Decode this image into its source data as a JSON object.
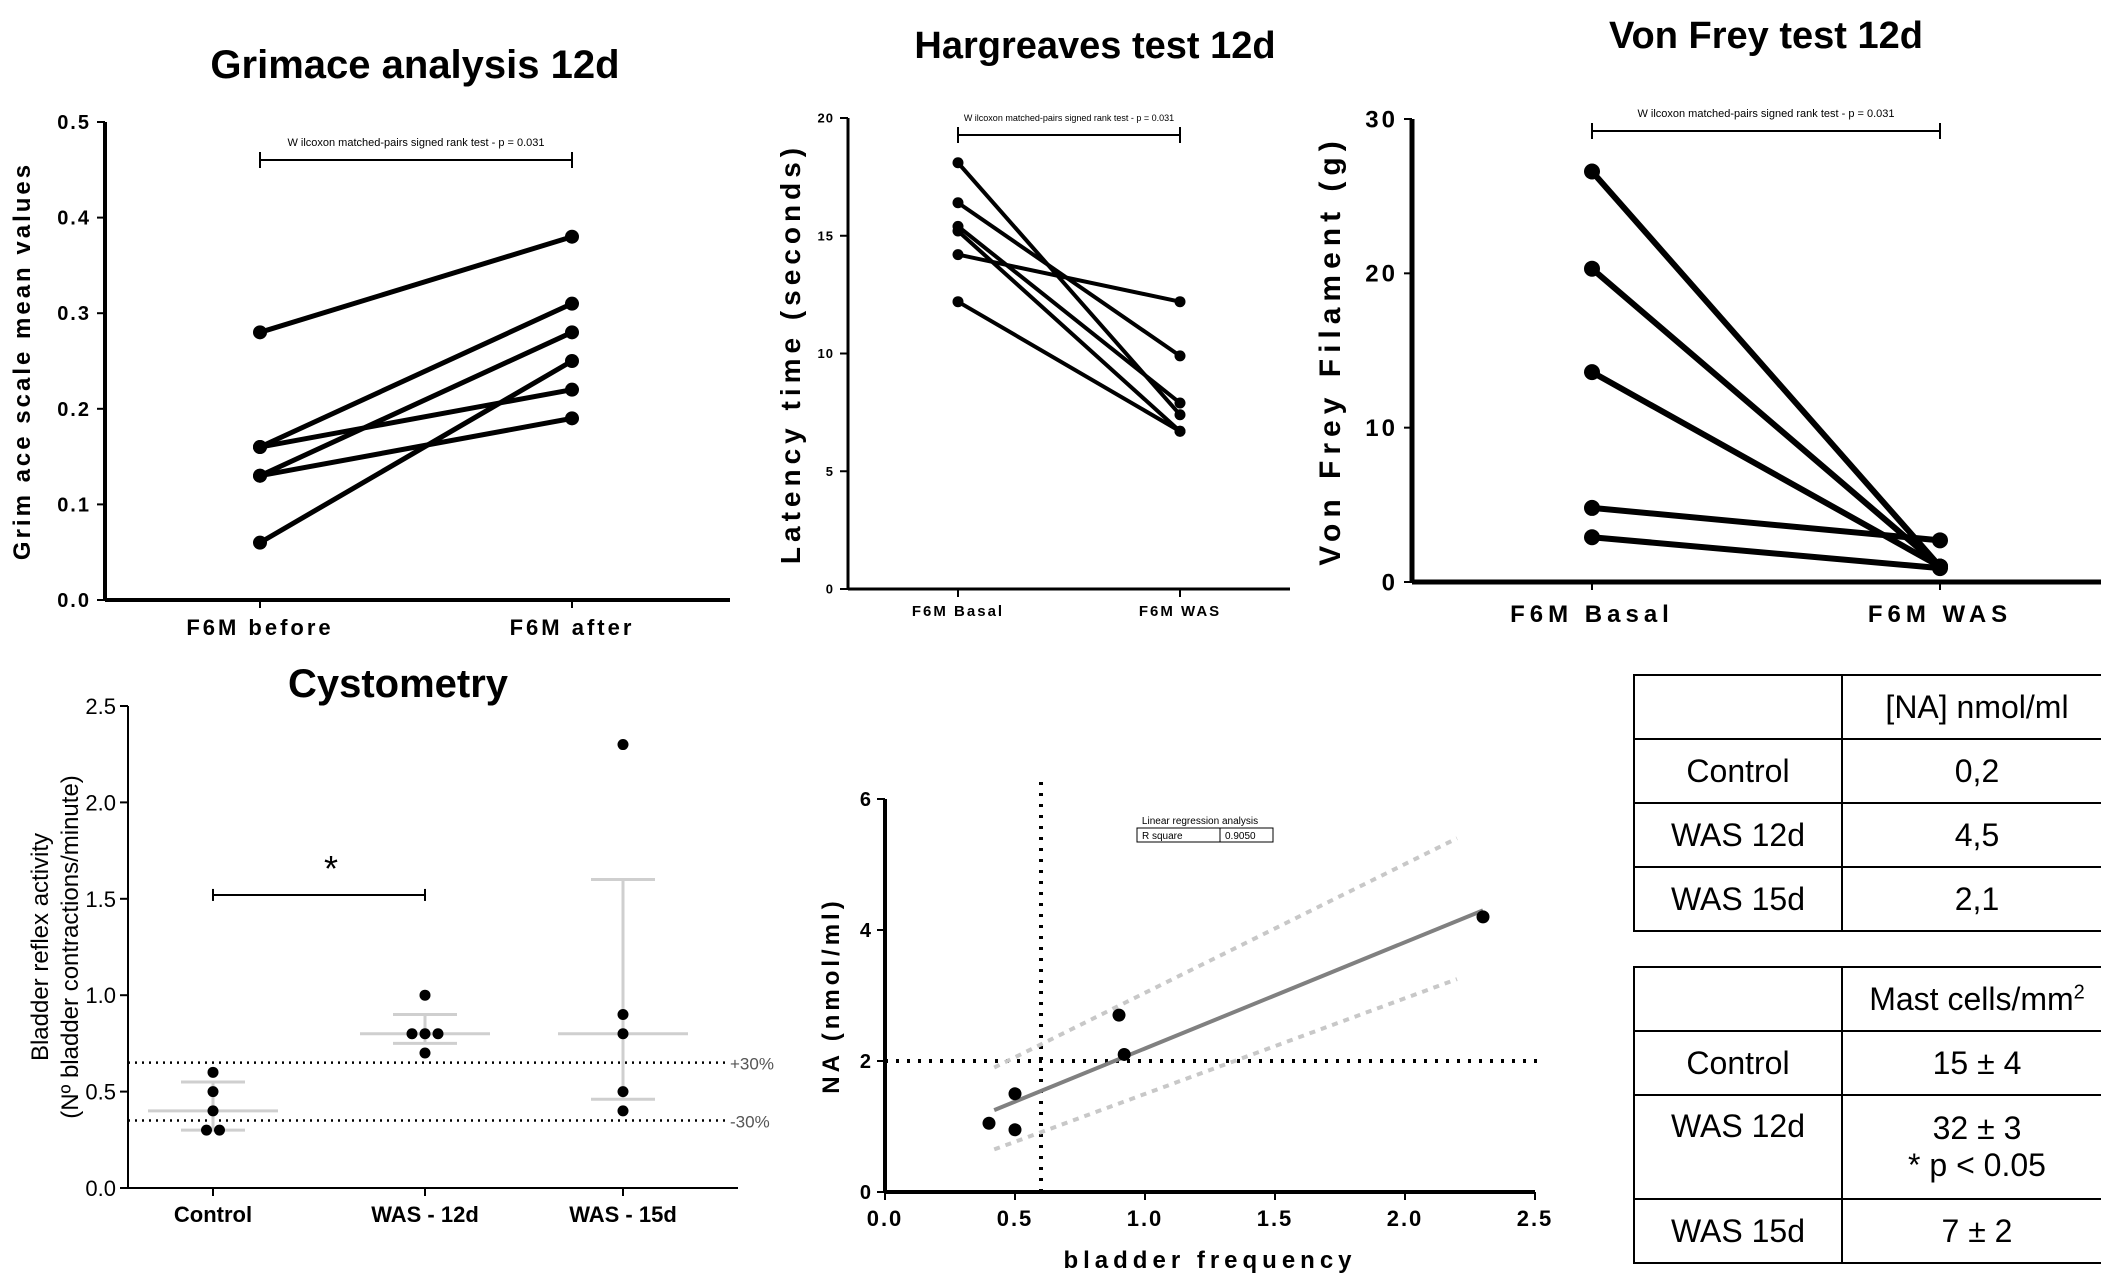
{
  "chart_data": [
    {
      "id": "grimace",
      "type": "line",
      "title": "Grimace analysis 12d",
      "ylabel": "Grim ace scale mean values",
      "categories": [
        "F6M before",
        "F6M after"
      ],
      "ylim": [
        0,
        0.5
      ],
      "yticks": [
        "0.0",
        "0.1",
        "0.2",
        "0.3",
        "0.4",
        "0.5"
      ],
      "annotation": "W ilcoxon matched-pairs signed rank test - p = 0.031",
      "series": [
        {
          "values": [
            0.28,
            0.38
          ]
        },
        {
          "values": [
            0.16,
            0.31
          ]
        },
        {
          "values": [
            0.13,
            0.28
          ]
        },
        {
          "values": [
            0.06,
            0.25
          ]
        },
        {
          "values": [
            0.16,
            0.22
          ]
        },
        {
          "values": [
            0.13,
            0.19
          ]
        }
      ]
    },
    {
      "id": "hargreaves",
      "type": "line",
      "title": "Hargreaves test 12d",
      "ylabel": "Latency time (seconds)",
      "categories": [
        "F6M Basal",
        "F6M WAS"
      ],
      "ylim": [
        0,
        20
      ],
      "yticks": [
        "0",
        "5",
        "10",
        "15",
        "20"
      ],
      "annotation": "W ilcoxon matched-pairs signed rank test - p = 0.031",
      "series": [
        {
          "values": [
            18.1,
            7.4
          ]
        },
        {
          "values": [
            16.4,
            9.9
          ]
        },
        {
          "values": [
            15.4,
            7.9
          ]
        },
        {
          "values": [
            15.2,
            6.7
          ]
        },
        {
          "values": [
            14.2,
            12.2
          ]
        },
        {
          "values": [
            12.2,
            6.7
          ]
        }
      ]
    },
    {
      "id": "vonfrey",
      "type": "line",
      "title": "Von Frey test 12d",
      "ylabel": "Von Frey Filament (g)",
      "categories": [
        "F6M Basal",
        "F6M WAS"
      ],
      "ylim": [
        0,
        30
      ],
      "yticks": [
        "0",
        "10",
        "20",
        "30"
      ],
      "annotation": "W ilcoxon matched-pairs signed rank test - p = 0.031",
      "series": [
        {
          "values": [
            26.6,
            1.0
          ]
        },
        {
          "values": [
            20.3,
            1.0
          ]
        },
        {
          "values": [
            13.6,
            1.0
          ]
        },
        {
          "values": [
            4.8,
            2.7
          ]
        },
        {
          "values": [
            2.9,
            0.9
          ]
        }
      ]
    },
    {
      "id": "cystometry",
      "type": "scatter",
      "title": "Cystometry",
      "ylabel": "Bladder reflex activity",
      "ylabel2": "(Nº bladder contractions/minute)",
      "categories": [
        "Control",
        "WAS - 12d",
        "WAS - 15d"
      ],
      "ylim": [
        0,
        2.5
      ],
      "yticks": [
        "0.0",
        "0.5",
        "1.0",
        "1.5",
        "2.0",
        "2.5"
      ],
      "points": [
        [
          0.6,
          0.5,
          0.4,
          0.3,
          0.3
        ],
        [
          1.0,
          0.8,
          0.8,
          0.8,
          0.7
        ],
        [
          2.3,
          0.9,
          0.8,
          0.5,
          0.4
        ]
      ],
      "means": [
        0.4,
        0.8,
        0.8
      ],
      "error_bars": [
        [
          0.3,
          0.55
        ],
        [
          0.75,
          0.9
        ],
        [
          0.46,
          1.6
        ]
      ],
      "reference_lines": [
        {
          "y": 0.65,
          "label": "+30%"
        },
        {
          "y": 0.35,
          "label": "-30%"
        }
      ],
      "significance": {
        "between": [
          "Control",
          "WAS - 12d"
        ],
        "symbol": "*",
        "y": 1.52
      }
    },
    {
      "id": "regression",
      "type": "scatter",
      "title": "",
      "xlabel": "bladder frequency",
      "ylabel": "NA (nmol/ml)",
      "xlim": [
        0,
        2.5
      ],
      "ylim": [
        0,
        6
      ],
      "xticks": [
        "0.0",
        "0.5",
        "1.0",
        "1.5",
        "2.0",
        "2.5"
      ],
      "yticks": [
        "0",
        "2",
        "4",
        "6"
      ],
      "points": [
        {
          "x": 0.4,
          "y": 1.05
        },
        {
          "x": 0.5,
          "y": 1.5
        },
        {
          "x": 0.5,
          "y": 0.95
        },
        {
          "x": 0.9,
          "y": 2.7
        },
        {
          "x": 0.92,
          "y": 2.1
        },
        {
          "x": 2.3,
          "y": 4.2
        }
      ],
      "fit_line": {
        "x": [
          0.42,
          2.3
        ],
        "y": [
          1.25,
          4.3
        ]
      },
      "ci_upper": {
        "x": [
          0.42,
          2.2
        ],
        "y": [
          1.9,
          5.4
        ]
      },
      "ci_lower": {
        "x": [
          0.42,
          2.2
        ],
        "y": [
          0.65,
          3.25
        ]
      },
      "reference_lines": {
        "x": 0.6,
        "y": 2.0
      },
      "annotation_title": "Linear regression analysis",
      "annotation_label": "R square",
      "annotation_value": "0.9050"
    }
  ],
  "tables": {
    "na": {
      "header": [
        "",
        "[NA] nmol/ml"
      ],
      "rows": [
        [
          "Control",
          "0,2"
        ],
        [
          "WAS 12d",
          "4,5"
        ],
        [
          "WAS 15d",
          "2,1"
        ]
      ]
    },
    "mast": {
      "header_label": "",
      "header_value": "Mast cells/mm",
      "header_sup": "2",
      "rows": [
        {
          "label": "Control",
          "value": "15 ± 4",
          "note": ""
        },
        {
          "label": "WAS 12d",
          "value": "32 ± 3",
          "note": "* p < 0.05"
        },
        {
          "label": "WAS 15d",
          "value": "7 ± 2",
          "note": ""
        }
      ]
    }
  }
}
